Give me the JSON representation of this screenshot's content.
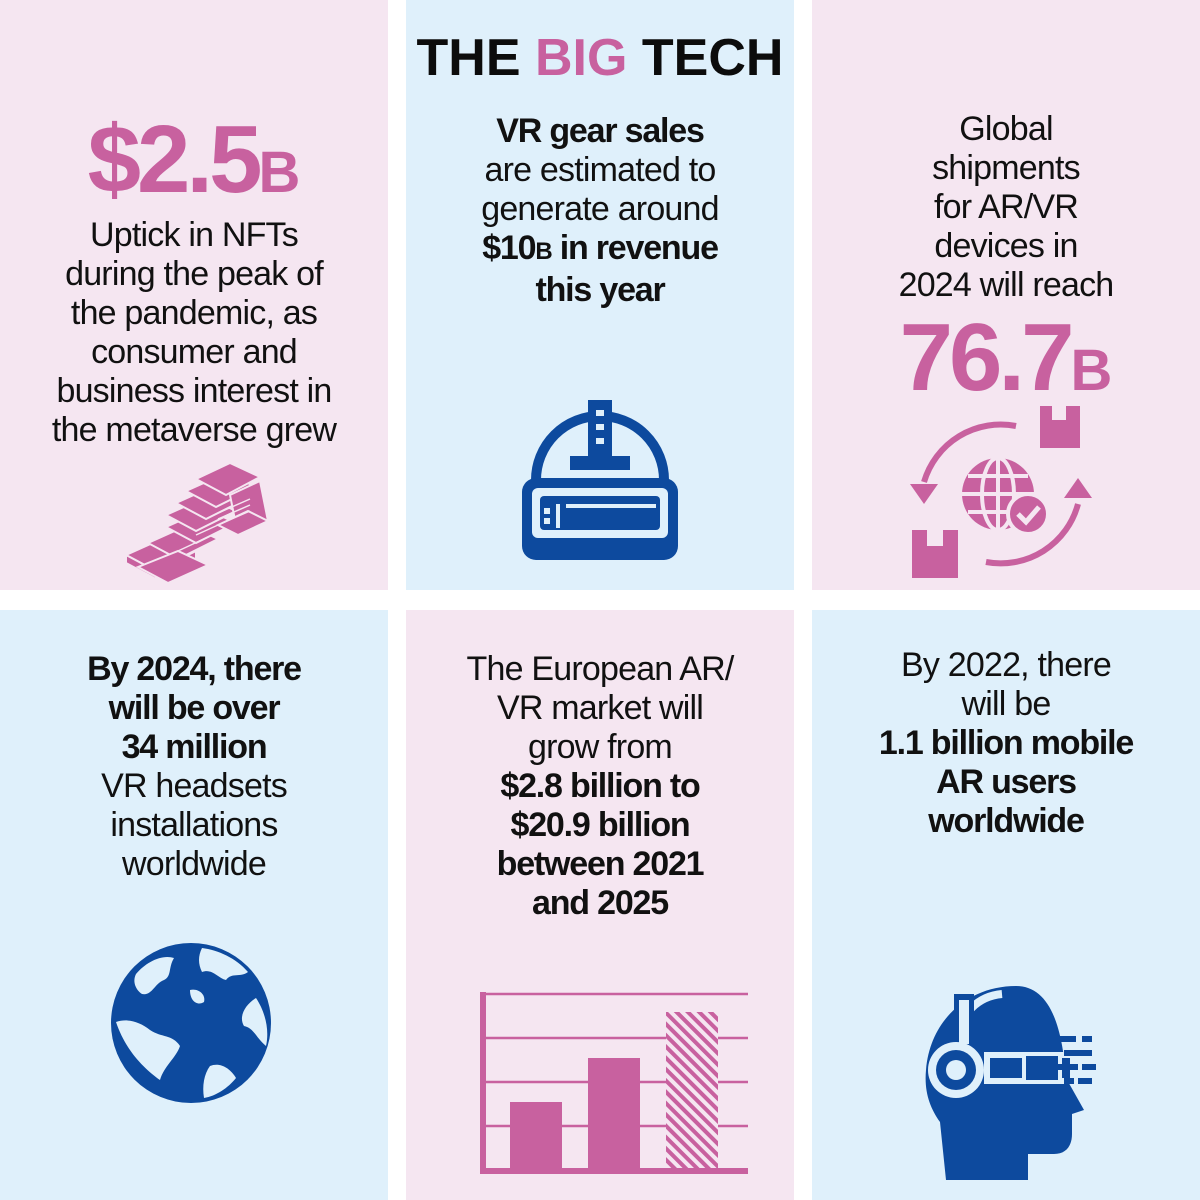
{
  "title": {
    "part1": "THE ",
    "accent": "BIG",
    "part2": " TECH"
  },
  "panels": {
    "nft": {
      "stat": "$2.5",
      "unit": "B",
      "lines": [
        "Uptick in NFTs",
        "during the peak of",
        "the pandemic, as",
        "consumer and",
        "business interest in",
        "the metaverse grew"
      ]
    },
    "vr_sales": {
      "line1": "VR gear sales",
      "line2": "are estimated to",
      "line3": "generate around",
      "amount": "$10",
      "amount_unit": "B",
      "line4_rest": " in revenue",
      "line5": "this year"
    },
    "shipments": {
      "lines": [
        "Global",
        "shipments",
        "for AR/VR",
        "devices in",
        "2024 will reach"
      ],
      "stat": "76.7",
      "unit": "B"
    },
    "headsets": {
      "bold_lines": [
        "By 2024, there",
        "will be over",
        "34 million"
      ],
      "lines": [
        "VR headsets",
        "installations",
        "worldwide"
      ]
    },
    "europe": {
      "lines": [
        "The European AR/",
        "VR market will",
        "grow from"
      ],
      "bold_lines": [
        "$2.8 billion to",
        "$20.9 billion",
        "between 2021",
        "and 2025"
      ]
    },
    "mobile_ar": {
      "lines": [
        "By 2022, there",
        "will be"
      ],
      "bold_lines": [
        "1.1 billion mobile",
        "AR users",
        "worldwide"
      ]
    }
  },
  "colors": {
    "pink_bg": "#f5e6f1",
    "blue_bg": "#dff0fb",
    "accent_pink": "#c8619f",
    "icon_blue": "#0d4a9e"
  }
}
